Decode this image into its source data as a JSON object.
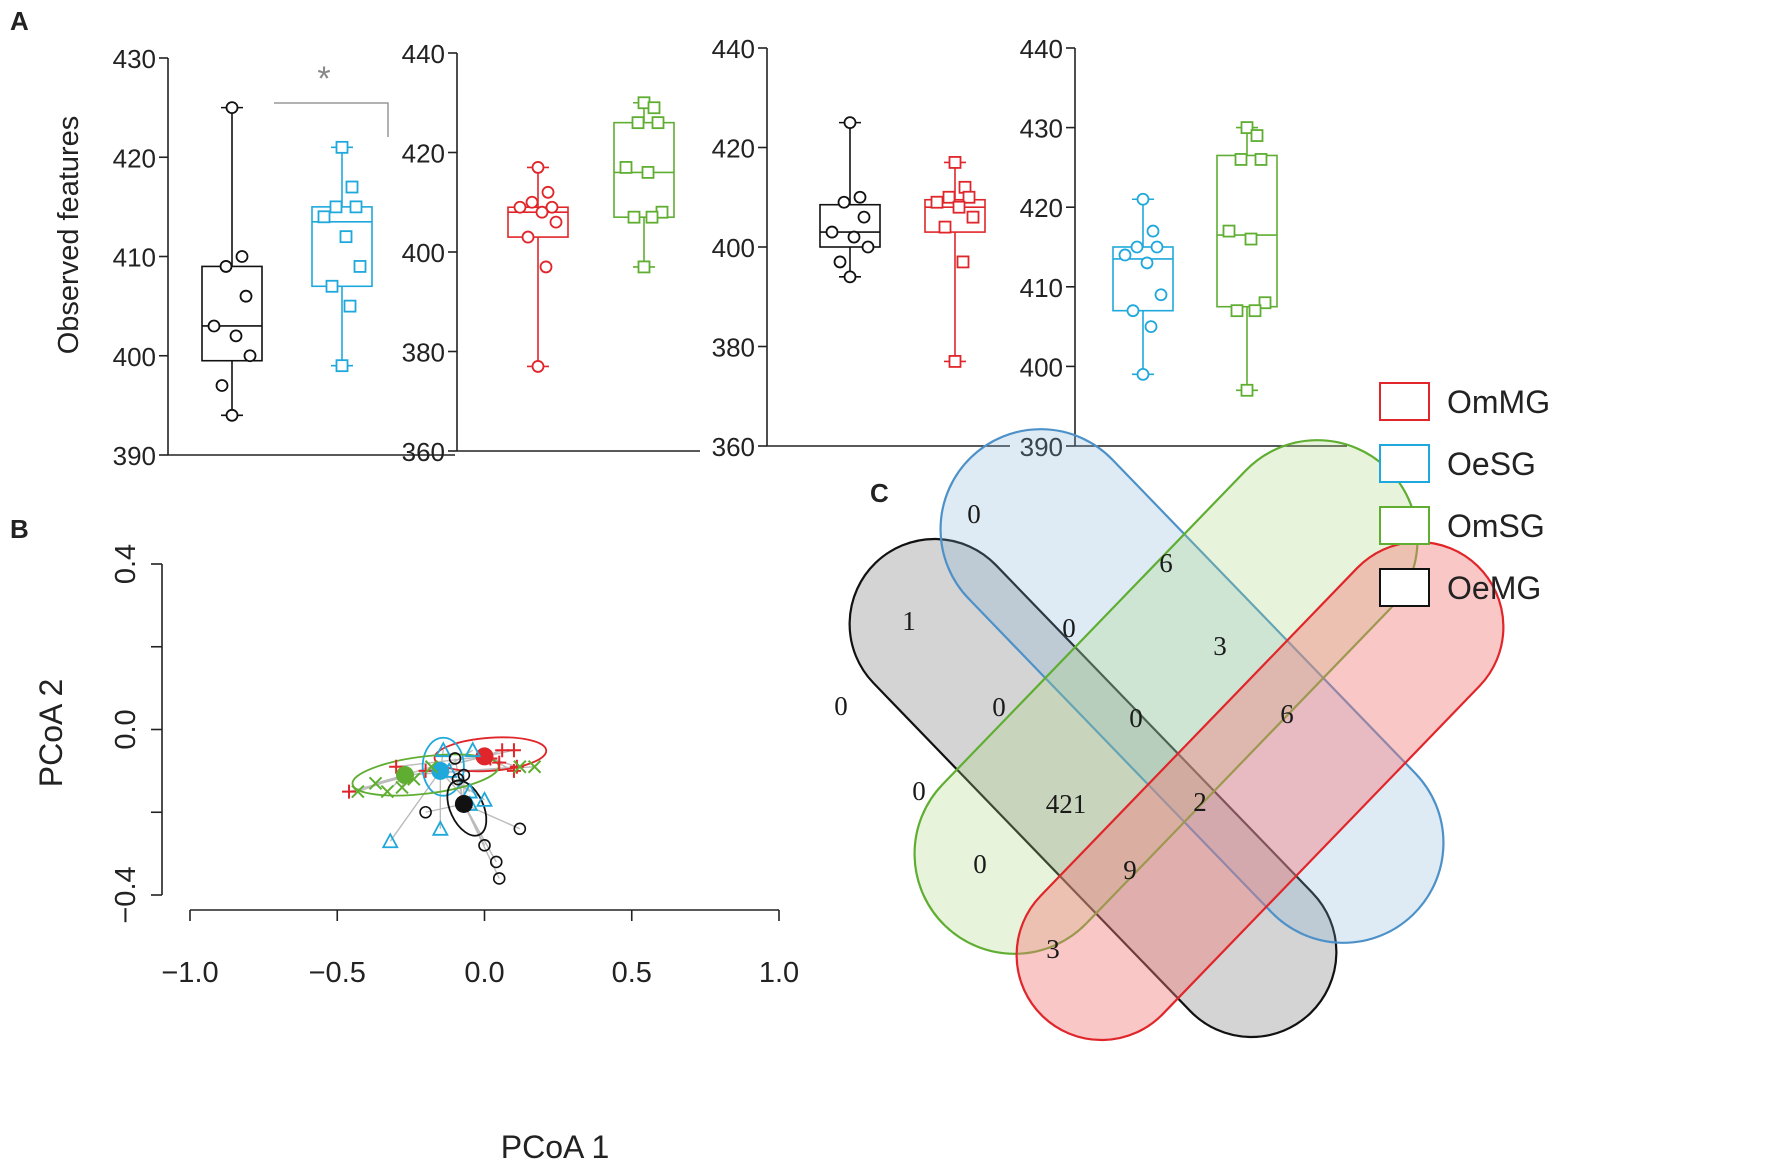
{
  "panel_labels": {
    "a": "A",
    "b": "B",
    "c": "C"
  },
  "colors": {
    "OmMG": "#e0262a",
    "OeSG": "#1fa8dc",
    "OmSG": "#5fae32",
    "OeMG": "#111111",
    "sig": "#999999"
  },
  "legend": {
    "items": [
      "OmMG",
      "OeSG",
      "OmSG",
      "OeMG"
    ]
  },
  "chart_data": [
    {
      "type": "box",
      "ylabel": "Observed features",
      "yticks": [
        "390",
        "400",
        "410",
        "420",
        "430"
      ],
      "ylim": [
        390,
        430
      ],
      "significance": "*",
      "groups": [
        {
          "name": "OeMG",
          "marker": "circle",
          "min": 394,
          "q1": 399.5,
          "median": 403,
          "q3": 409,
          "max": 425,
          "points": [
            425,
            410,
            409,
            406,
            403,
            402,
            400,
            397,
            394
          ]
        },
        {
          "name": "OeSG",
          "marker": "square",
          "min": 399,
          "q1": 407,
          "median": 413.5,
          "q3": 415,
          "max": 421,
          "points": [
            421,
            417,
            415,
            415,
            414,
            412,
            409,
            407,
            405,
            399
          ]
        }
      ]
    },
    {
      "type": "box",
      "yticks": [
        "360",
        "380",
        "400",
        "420",
        "440"
      ],
      "ylim": [
        360,
        440
      ],
      "groups": [
        {
          "name": "OmMG",
          "marker": "circle",
          "min": 377,
          "q1": 403,
          "median": 408,
          "q3": 409,
          "max": 417,
          "points": [
            417,
            412,
            410,
            409,
            409,
            408,
            406,
            403,
            397,
            377
          ]
        },
        {
          "name": "OmSG",
          "marker": "square",
          "min": 397,
          "q1": 407,
          "median": 416,
          "q3": 426,
          "max": 430,
          "points": [
            430,
            429,
            426,
            426,
            417,
            416,
            408,
            407,
            407,
            397
          ]
        }
      ]
    },
    {
      "type": "box",
      "yticks": [
        "360",
        "380",
        "400",
        "420",
        "440"
      ],
      "ylim": [
        360,
        440
      ],
      "groups": [
        {
          "name": "OeMG",
          "marker": "circle",
          "min": 394,
          "q1": 400,
          "median": 403,
          "q3": 408.5,
          "max": 425,
          "points": [
            425,
            410,
            409,
            406,
            403,
            402,
            400,
            397,
            394
          ]
        },
        {
          "name": "OmMG",
          "marker": "square",
          "min": 377,
          "q1": 403,
          "median": 408,
          "q3": 409.5,
          "max": 417,
          "points": [
            417,
            412,
            410,
            410,
            409,
            408,
            406,
            404,
            397,
            377
          ]
        }
      ]
    },
    {
      "type": "box",
      "yticks": [
        "390",
        "400",
        "410",
        "420",
        "430",
        "440"
      ],
      "ylim": [
        390,
        440
      ],
      "groups": [
        {
          "name": "OeSG",
          "marker": "circle",
          "min": 399,
          "q1": 407,
          "median": 413.5,
          "q3": 415,
          "max": 421,
          "points": [
            421,
            417,
            415,
            415,
            414,
            413,
            409,
            407,
            405,
            399
          ]
        },
        {
          "name": "OmSG",
          "marker": "square",
          "min": 397,
          "q1": 407.5,
          "median": 416.5,
          "q3": 426.5,
          "max": 430,
          "points": [
            430,
            429,
            426,
            426,
            417,
            416,
            408,
            407,
            407,
            397
          ]
        }
      ]
    },
    {
      "type": "scatter",
      "title": "",
      "xlabel": "PCoA 1",
      "ylabel": "PCoA 2",
      "xticks": [
        "−1.0",
        "−0.5",
        "0.0",
        "0.5",
        "1.0"
      ],
      "yticks": [
        "−0.4",
        "0.0",
        "0.4"
      ],
      "xlim": [
        -1.0,
        1.0
      ],
      "ylim": [
        -0.4,
        0.4
      ],
      "groups": [
        {
          "name": "OmMG",
          "marker": "plus",
          "centroid": [
            0.0,
            -0.065
          ],
          "ellipse": [
            0.02,
            -0.06,
            0.19,
            0.04,
            -4
          ],
          "points": [
            [
              -0.46,
              -0.15
            ],
            [
              -0.3,
              -0.09
            ],
            [
              -0.2,
              -0.1
            ],
            [
              0.05,
              -0.08
            ],
            [
              0.1,
              -0.05
            ],
            [
              0.1,
              -0.1
            ],
            [
              0.06,
              -0.05
            ],
            [
              0.02,
              -0.07
            ],
            [
              0.11,
              -0.09
            ]
          ]
        },
        {
          "name": "OeSG",
          "marker": "triangle",
          "centroid": [
            -0.15,
            -0.1
          ],
          "ellipse": [
            -0.14,
            -0.09,
            0.07,
            0.07,
            0
          ],
          "points": [
            [
              -0.32,
              -0.27
            ],
            [
              -0.15,
              -0.24
            ],
            [
              -0.12,
              -0.1
            ],
            [
              -0.14,
              -0.05
            ],
            [
              -0.04,
              -0.05
            ],
            [
              -0.05,
              -0.18
            ],
            [
              -0.05,
              -0.15
            ],
            [
              0.0,
              -0.17
            ]
          ]
        },
        {
          "name": "OmSG",
          "marker": "x",
          "centroid": [
            -0.27,
            -0.11
          ],
          "ellipse": [
            -0.2,
            -0.11,
            0.25,
            0.045,
            -7
          ],
          "points": [
            [
              -0.43,
              -0.15
            ],
            [
              -0.37,
              -0.13
            ],
            [
              -0.33,
              -0.15
            ],
            [
              -0.28,
              -0.14
            ],
            [
              -0.24,
              -0.12
            ],
            [
              -0.18,
              -0.09
            ],
            [
              0.17,
              -0.09
            ],
            [
              0.12,
              -0.09
            ]
          ]
        },
        {
          "name": "OeMG",
          "marker": "circle",
          "centroid": [
            -0.07,
            -0.18
          ],
          "ellipse": [
            -0.06,
            -0.19,
            0.1,
            0.04,
            65
          ],
          "points": [
            [
              -0.2,
              -0.2
            ],
            [
              -0.1,
              -0.07
            ],
            [
              -0.07,
              -0.11
            ],
            [
              0.0,
              -0.28
            ],
            [
              0.12,
              -0.24
            ],
            [
              0.04,
              -0.32
            ],
            [
              0.05,
              -0.36
            ],
            [
              -0.09,
              -0.12
            ]
          ]
        }
      ]
    },
    {
      "type": "venn",
      "sets": [
        "OmMG",
        "OeSG",
        "OmSG",
        "OeMG"
      ],
      "region_values": {
        "OeSG_only": 0,
        "OmSG_only": 6,
        "OeMG_only": 0,
        "OmMG_only": 6,
        "OeMG_OeSG": 1,
        "OeSG_OmSG": 0,
        "OmSG_OmMG": 3,
        "OeMG_OmSG": 0,
        "OeMG_OeSG_OmSG": 0,
        "OeSG_OmSG_OmMG": 0,
        "OeMG_OmSG_OmMG": 0,
        "OeSG_OmMG": 2,
        "all": 421,
        "OeMG_OeSG_OmMG": 9,
        "OeMG_OmMG": 3
      }
    }
  ]
}
